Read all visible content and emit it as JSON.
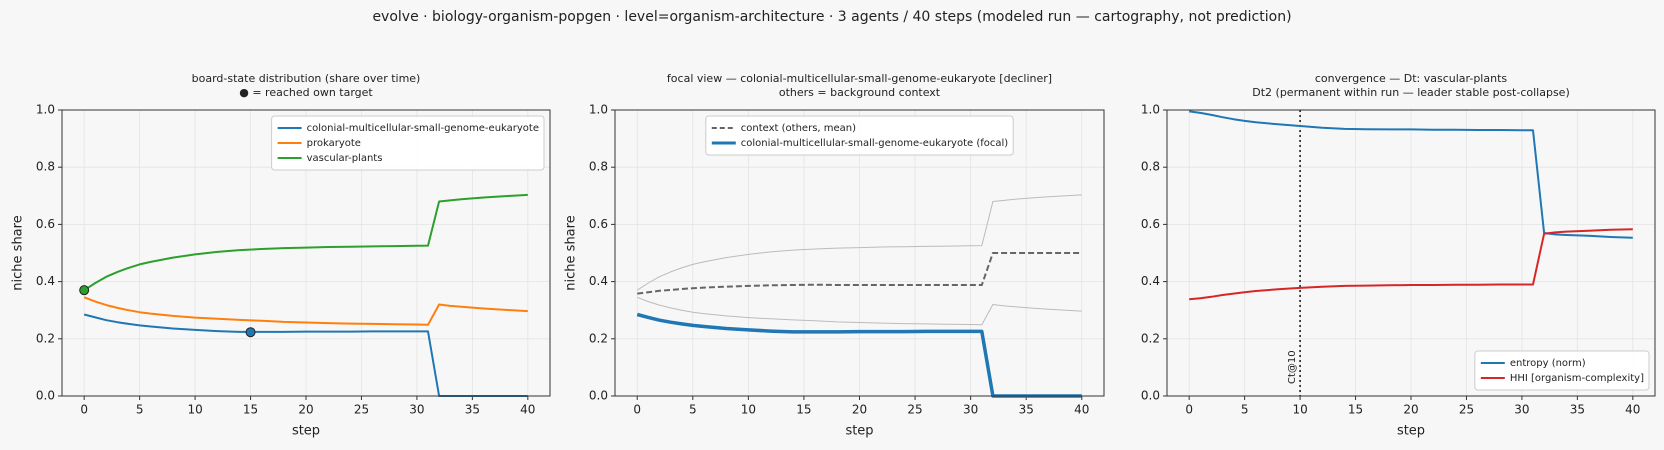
{
  "suptitle": "evolve · biology-organism-popgen · level=organism-architecture · 3 agents / 40 steps   (modeled run — cartography, not prediction)",
  "chart_data": [
    {
      "type": "line",
      "title": "board-state distribution (share over time)",
      "subtitle": "● = reached own target",
      "xlabel": "step",
      "ylabel": "niche share",
      "legend_loc": "upper right",
      "grid": true,
      "xlim": [
        -2,
        42
      ],
      "xticks": [
        0,
        5,
        10,
        15,
        20,
        25,
        30,
        35,
        40
      ],
      "ylim": [
        0,
        1
      ],
      "yticks": [
        {
          "value": 0,
          "label": "0.0"
        },
        {
          "value": 0.2,
          "label": "0.2"
        },
        {
          "value": 0.4,
          "label": "0.4"
        },
        {
          "value": 0.6,
          "label": "0.6"
        },
        {
          "value": 0.8,
          "label": "0.8"
        },
        {
          "value": 1,
          "label": "1.0"
        }
      ],
      "x": [
        0,
        1,
        2,
        3,
        4,
        5,
        6,
        8,
        10,
        12,
        14,
        16,
        18,
        20,
        22,
        24,
        26,
        28,
        30,
        31,
        32,
        33,
        34,
        36,
        38,
        40
      ],
      "series": [
        {
          "name": "colonial-multicellular-small-genome-eukaryote",
          "color": "#1f77b4",
          "width": 2,
          "values": [
            0.285,
            0.275,
            0.265,
            0.258,
            0.252,
            0.247,
            0.243,
            0.236,
            0.231,
            0.227,
            0.224,
            0.224,
            0.224,
            0.225,
            0.225,
            0.225,
            0.226,
            0.226,
            0.226,
            0.226,
            0,
            0,
            0,
            0,
            0,
            0
          ]
        },
        {
          "name": "prokaryote",
          "color": "#ff7f0e",
          "width": 2,
          "values": [
            0.345,
            0.33,
            0.318,
            0.308,
            0.3,
            0.293,
            0.288,
            0.28,
            0.274,
            0.27,
            0.266,
            0.263,
            0.259,
            0.257,
            0.255,
            0.253,
            0.252,
            0.251,
            0.25,
            0.249,
            0.32,
            0.315,
            0.312,
            0.306,
            0.301,
            0.297
          ]
        },
        {
          "name": "vascular-plants",
          "color": "#2ca02c",
          "width": 2,
          "values": [
            0.37,
            0.395,
            0.417,
            0.434,
            0.448,
            0.46,
            0.469,
            0.484,
            0.495,
            0.504,
            0.51,
            0.514,
            0.517,
            0.519,
            0.521,
            0.522,
            0.523,
            0.524,
            0.525,
            0.526,
            0.68,
            0.684,
            0.688,
            0.694,
            0.699,
            0.703
          ]
        }
      ],
      "markers": [
        {
          "x": 0,
          "y": 0.37,
          "color": "#2ca02c"
        },
        {
          "x": 15,
          "y": 0.223,
          "color": "#1f77b4"
        }
      ]
    },
    {
      "type": "line",
      "title": "focal view — colonial-multicellular-small-genome-eukaryote  [decliner]",
      "subtitle": "others = background context",
      "xlabel": "step",
      "ylabel": "niche share",
      "legend_loc": "upper center",
      "grid": true,
      "xlim": [
        -2,
        42
      ],
      "xticks": [
        0,
        5,
        10,
        15,
        20,
        25,
        30,
        35,
        40
      ],
      "ylim": [
        0,
        1
      ],
      "yticks": [
        {
          "value": 0,
          "label": "0.0"
        },
        {
          "value": 0.2,
          "label": "0.2"
        },
        {
          "value": 0.4,
          "label": "0.4"
        },
        {
          "value": 0.6,
          "label": "0.6"
        },
        {
          "value": 0.8,
          "label": "0.8"
        },
        {
          "value": 1,
          "label": "1.0"
        }
      ],
      "x": [
        0,
        1,
        2,
        3,
        4,
        5,
        6,
        8,
        10,
        12,
        14,
        16,
        18,
        20,
        22,
        24,
        26,
        28,
        30,
        31,
        32,
        33,
        34,
        36,
        38,
        40
      ],
      "series": [
        {
          "color": "#bbbbbb",
          "width": 1,
          "values": [
            0.345,
            0.33,
            0.318,
            0.308,
            0.3,
            0.293,
            0.288,
            0.28,
            0.274,
            0.27,
            0.266,
            0.263,
            0.259,
            0.257,
            0.255,
            0.253,
            0.252,
            0.251,
            0.25,
            0.249,
            0.32,
            0.315,
            0.312,
            0.306,
            0.301,
            0.297
          ]
        },
        {
          "color": "#bbbbbb",
          "width": 1,
          "values": [
            0.37,
            0.395,
            0.417,
            0.434,
            0.448,
            0.46,
            0.469,
            0.484,
            0.495,
            0.504,
            0.51,
            0.514,
            0.517,
            0.519,
            0.521,
            0.522,
            0.523,
            0.524,
            0.525,
            0.526,
            0.68,
            0.684,
            0.688,
            0.694,
            0.699,
            0.703
          ]
        },
        {
          "name": "context (others, mean)",
          "color": "#666666",
          "width": 2,
          "dash": true,
          "values": [
            0.358,
            0.363,
            0.368,
            0.371,
            0.374,
            0.377,
            0.379,
            0.382,
            0.385,
            0.387,
            0.388,
            0.389,
            0.388,
            0.388,
            0.388,
            0.388,
            0.388,
            0.388,
            0.388,
            0.388,
            0.5,
            0.5,
            0.5,
            0.5,
            0.5,
            0.5
          ]
        },
        {
          "name": "colonial-multicellular-small-genome-eukaryote (focal)",
          "color": "#1f77b4",
          "width": 3.5,
          "values": [
            0.285,
            0.275,
            0.265,
            0.258,
            0.252,
            0.247,
            0.243,
            0.236,
            0.231,
            0.227,
            0.224,
            0.224,
            0.224,
            0.225,
            0.225,
            0.225,
            0.226,
            0.226,
            0.226,
            0.226,
            0,
            0,
            0,
            0,
            0,
            0
          ]
        }
      ]
    },
    {
      "type": "line",
      "title": "convergence — Dt: vascular-plants",
      "subtitle": "Dt2 (permanent within run — leader stable post-collapse)",
      "xlabel": "step",
      "legend_loc": "lower right",
      "grid": true,
      "xlim": [
        -2,
        42
      ],
      "xticks": [
        0,
        5,
        10,
        15,
        20,
        25,
        30,
        35,
        40
      ],
      "ylim": [
        0,
        1
      ],
      "yticks": [
        {
          "value": 0,
          "label": "0.0"
        },
        {
          "value": 0.2,
          "label": "0.2"
        },
        {
          "value": 0.4,
          "label": "0.4"
        },
        {
          "value": 0.6,
          "label": "0.6"
        },
        {
          "value": 0.8,
          "label": "0.8"
        },
        {
          "value": 1,
          "label": "1.0"
        }
      ],
      "x": [
        0,
        1,
        2,
        3,
        4,
        5,
        6,
        8,
        10,
        12,
        14,
        16,
        18,
        20,
        22,
        24,
        26,
        28,
        30,
        31,
        32,
        33,
        34,
        36,
        38,
        40
      ],
      "series": [
        {
          "name": "entropy (norm)",
          "color": "#1f77b4",
          "width": 2,
          "values": [
            0.995,
            0.99,
            0.983,
            0.975,
            0.968,
            0.962,
            0.957,
            0.95,
            0.944,
            0.938,
            0.934,
            0.933,
            0.932,
            0.932,
            0.931,
            0.931,
            0.93,
            0.93,
            0.929,
            0.929,
            0.57,
            0.565,
            0.563,
            0.56,
            0.556,
            0.553
          ]
        },
        {
          "name": "HHI [organism-complexity]",
          "color": "#d62728",
          "width": 2,
          "values": [
            0.338,
            0.342,
            0.347,
            0.353,
            0.358,
            0.363,
            0.367,
            0.373,
            0.378,
            0.382,
            0.385,
            0.386,
            0.387,
            0.388,
            0.388,
            0.389,
            0.389,
            0.39,
            0.39,
            0.39,
            0.567,
            0.572,
            0.575,
            0.578,
            0.581,
            0.583
          ]
        }
      ],
      "vlines": [
        {
          "x": 10,
          "label": "Ct@10"
        }
      ]
    }
  ]
}
